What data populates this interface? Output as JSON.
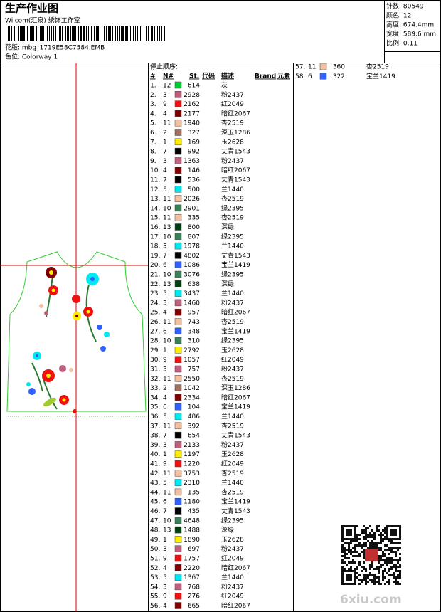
{
  "header": {
    "title": "生产作业图",
    "studio": "Wilcom(汇泉) 绣饰工作室",
    "design_file": "花版: mbg_1719E58C7584.EMB",
    "colorway": "色位: Colorway 1"
  },
  "info": [
    "针数: 80549",
    "颜色: 12",
    "高度: 674.4mm",
    "宽度: 589.6 mm",
    "比例: 0.11"
  ],
  "stop_list": {
    "title": "停止顺序:",
    "headers": [
      "#",
      "N#",
      "St.",
      "代码",
      "描述",
      "Brand",
      "元素"
    ],
    "rows": [
      {
        "index": "1.",
        "needle": "12",
        "stitches": "614",
        "description": "灰",
        "color": "#00cc33"
      },
      {
        "index": "2.",
        "needle": "3",
        "stitches": "2928",
        "description": "粉2437",
        "color": "#c0607f"
      },
      {
        "index": "3.",
        "needle": "9",
        "stitches": "2162",
        "description": "红2049",
        "color": "#ee1111"
      },
      {
        "index": "4.",
        "needle": "4",
        "stitches": "2177",
        "description": "暗红2067",
        "color": "#800000"
      },
      {
        "index": "5.",
        "needle": "11",
        "stitches": "1940",
        "description": "杏2519",
        "color": "#f2c0a0"
      },
      {
        "index": "6.",
        "needle": "2",
        "stitches": "327",
        "description": "深玉1286",
        "color": "#a07060"
      },
      {
        "index": "7.",
        "needle": "1",
        "stitches": "169",
        "description": "玉2628",
        "color": "#ffee00"
      },
      {
        "index": "8.",
        "needle": "7",
        "stitches": "992",
        "description": "丈青1543",
        "color": "#000000"
      },
      {
        "index": "9.",
        "needle": "3",
        "stitches": "1363",
        "description": "粉2437",
        "color": "#c0607f"
      },
      {
        "index": "10.",
        "needle": "4",
        "stitches": "146",
        "description": "暗红2067",
        "color": "#800000"
      },
      {
        "index": "11.",
        "needle": "7",
        "stitches": "536",
        "description": "丈青1543",
        "color": "#000000"
      },
      {
        "index": "12.",
        "needle": "5",
        "stitches": "500",
        "description": "兰1440",
        "color": "#00e8f0"
      },
      {
        "index": "13.",
        "needle": "11",
        "stitches": "2026",
        "description": "杏2519",
        "color": "#f2c0a0"
      },
      {
        "index": "14.",
        "needle": "10",
        "stitches": "2901",
        "description": "绿2395",
        "color": "#3a8058"
      },
      {
        "index": "15.",
        "needle": "11",
        "stitches": "335",
        "description": "杏2519",
        "color": "#f2c0a0"
      },
      {
        "index": "16.",
        "needle": "13",
        "stitches": "800",
        "description": "深绿",
        "color": "#004010"
      },
      {
        "index": "17.",
        "needle": "10",
        "stitches": "807",
        "description": "绿2395",
        "color": "#3a8058"
      },
      {
        "index": "18.",
        "needle": "5",
        "stitches": "1978",
        "description": "兰1440",
        "color": "#00e8f0"
      },
      {
        "index": "19.",
        "needle": "7",
        "stitches": "4802",
        "description": "丈青1543",
        "color": "#000000"
      },
      {
        "index": "20.",
        "needle": "6",
        "stitches": "1086",
        "description": "宝兰1419",
        "color": "#3060ff"
      },
      {
        "index": "21.",
        "needle": "10",
        "stitches": "3076",
        "description": "绿2395",
        "color": "#3a8058"
      },
      {
        "index": "22.",
        "needle": "13",
        "stitches": "638",
        "description": "深绿",
        "color": "#004010"
      },
      {
        "index": "23.",
        "needle": "5",
        "stitches": "3437",
        "description": "兰1440",
        "color": "#00e8f0"
      },
      {
        "index": "24.",
        "needle": "3",
        "stitches": "1460",
        "description": "粉2437",
        "color": "#c0607f"
      },
      {
        "index": "25.",
        "needle": "4",
        "stitches": "957",
        "description": "暗红2067",
        "color": "#800000"
      },
      {
        "index": "26.",
        "needle": "11",
        "stitches": "743",
        "description": "杏2519",
        "color": "#f2c0a0"
      },
      {
        "index": "27.",
        "needle": "6",
        "stitches": "348",
        "description": "宝兰1419",
        "color": "#3060ff"
      },
      {
        "index": "28.",
        "needle": "10",
        "stitches": "310",
        "description": "绿2395",
        "color": "#3a8058"
      },
      {
        "index": "29.",
        "needle": "1",
        "stitches": "2792",
        "description": "玉2628",
        "color": "#ffee00"
      },
      {
        "index": "30.",
        "needle": "9",
        "stitches": "1057",
        "description": "红2049",
        "color": "#ee1111"
      },
      {
        "index": "31.",
        "needle": "3",
        "stitches": "757",
        "description": "粉2437",
        "color": "#c0607f"
      },
      {
        "index": "32.",
        "needle": "11",
        "stitches": "2550",
        "description": "杏2519",
        "color": "#f2c0a0"
      },
      {
        "index": "33.",
        "needle": "2",
        "stitches": "1042",
        "description": "深玉1286",
        "color": "#a07060"
      },
      {
        "index": "34.",
        "needle": "4",
        "stitches": "2334",
        "description": "暗红2067",
        "color": "#800000"
      },
      {
        "index": "35.",
        "needle": "6",
        "stitches": "104",
        "description": "宝兰1419",
        "color": "#3060ff"
      },
      {
        "index": "36.",
        "needle": "5",
        "stitches": "486",
        "description": "兰1440",
        "color": "#00e8f0"
      },
      {
        "index": "37.",
        "needle": "11",
        "stitches": "392",
        "description": "杏2519",
        "color": "#f2c0a0"
      },
      {
        "index": "38.",
        "needle": "7",
        "stitches": "654",
        "description": "丈青1543",
        "color": "#000000"
      },
      {
        "index": "39.",
        "needle": "3",
        "stitches": "2133",
        "description": "粉2437",
        "color": "#c0607f"
      },
      {
        "index": "40.",
        "needle": "1",
        "stitches": "1197",
        "description": "玉2628",
        "color": "#ffee00"
      },
      {
        "index": "41.",
        "needle": "9",
        "stitches": "1220",
        "description": "红2049",
        "color": "#ee1111"
      },
      {
        "index": "42.",
        "needle": "11",
        "stitches": "3753",
        "description": "杏2519",
        "color": "#f2c0a0"
      },
      {
        "index": "43.",
        "needle": "5",
        "stitches": "2310",
        "description": "兰1440",
        "color": "#00e8f0"
      },
      {
        "index": "44.",
        "needle": "11",
        "stitches": "135",
        "description": "杏2519",
        "color": "#f2c0a0"
      },
      {
        "index": "45.",
        "needle": "6",
        "stitches": "1180",
        "description": "宝兰1419",
        "color": "#3060ff"
      },
      {
        "index": "46.",
        "needle": "7",
        "stitches": "435",
        "description": "丈青1543",
        "color": "#000000"
      },
      {
        "index": "47.",
        "needle": "10",
        "stitches": "4648",
        "description": "绿2395",
        "color": "#3a8058"
      },
      {
        "index": "48.",
        "needle": "13",
        "stitches": "1488",
        "description": "深绿",
        "color": "#004010"
      },
      {
        "index": "49.",
        "needle": "1",
        "stitches": "1890",
        "description": "玉2628",
        "color": "#ffee00"
      },
      {
        "index": "50.",
        "needle": "3",
        "stitches": "697",
        "description": "粉2437",
        "color": "#c0607f"
      },
      {
        "index": "51.",
        "needle": "9",
        "stitches": "1757",
        "description": "红2049",
        "color": "#ee1111"
      },
      {
        "index": "52.",
        "needle": "4",
        "stitches": "2220",
        "description": "暗红2067",
        "color": "#800000"
      },
      {
        "index": "53.",
        "needle": "5",
        "stitches": "1367",
        "description": "兰1440",
        "color": "#00e8f0"
      },
      {
        "index": "54.",
        "needle": "3",
        "stitches": "768",
        "description": "粉2437",
        "color": "#c0607f"
      },
      {
        "index": "55.",
        "needle": "9",
        "stitches": "276",
        "description": "红2049",
        "color": "#ee1111"
      },
      {
        "index": "56.",
        "needle": "4",
        "stitches": "665",
        "description": "暗红2067",
        "color": "#800000"
      },
      {
        "index": "57.",
        "needle": "11",
        "stitches": "360",
        "description": "杏2519",
        "color": "#f2c0a0"
      },
      {
        "index": "58.",
        "needle": "6",
        "stitches": "322",
        "description": "宝兰1419",
        "color": "#3060ff"
      }
    ]
  },
  "watermark": "6xiu.com"
}
